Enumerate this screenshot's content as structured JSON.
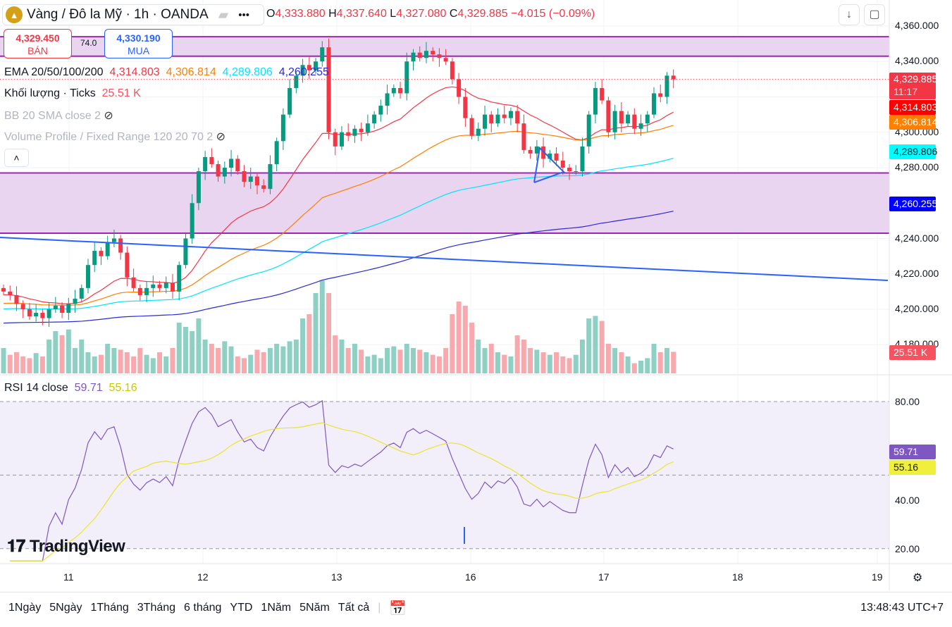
{
  "header": {
    "symbol": "Vàng / Đô la Mỹ · 1h · OANDA",
    "open_label": "O",
    "open": "4,333.880",
    "high_label": "H",
    "high": "4,337.640",
    "low_label": "L",
    "low": "4,327.080",
    "close_label": "C",
    "close": "4,329.885",
    "change": "−4.015 (−0.09%)"
  },
  "trade": {
    "sell_price": "4,329.450",
    "sell_label": "BÁN",
    "buy_price": "4,330.190",
    "buy_label": "MUA",
    "spread": "74.0"
  },
  "legend": {
    "ema_title": "EMA 20/50/100/200",
    "ema20": "4,314.803",
    "ema50": "4,306.814",
    "ema100": "4,289.806",
    "ema200": "4,260.255",
    "volume_title": "Khối lượng · Ticks",
    "volume": "25.51 K",
    "bb": "BB 20 SMA close 2",
    "vp": "Volume Profile / Fixed Range 120 20 70 2",
    "rsi_title": "RSI 14 close",
    "rsi": "59.71",
    "rsi_ma": "55.16"
  },
  "price_labels": {
    "last": "4,329.885",
    "countdown": "11:17",
    "ema20": "4,314.803",
    "ema50": "4,306.814",
    "ema100": "4,289.806",
    "ema200": "4,260.255",
    "volume": "25.51 K",
    "rsi": "59.71",
    "rsi_ma": "55.16"
  },
  "colors": {
    "up": "#089981",
    "down": "#f23645",
    "ema20": "#f23645",
    "ema50": "#ff7f00",
    "ema100": "#00e5ff",
    "ema200": "#2a2ad8",
    "rsi": "#7e57c2",
    "rsi_ma": "#e6e62e",
    "band": "#9c27b0"
  },
  "time_axis": [
    "11",
    "12",
    "13",
    "16",
    "17",
    "18",
    "19"
  ],
  "rsi_axis": [
    "80.00",
    "20.00",
    "40.00"
  ],
  "toolbar": {
    "ranges": [
      "1Ngày",
      "5Ngày",
      "1Tháng",
      "3Tháng",
      "6 tháng",
      "YTD",
      "1Năm",
      "5Năm",
      "Tất cả"
    ],
    "clock": "13:48:43 UTC+7"
  },
  "brand": "TradingView",
  "chart_data": {
    "type": "candlestick",
    "title": "Vàng / Đô la Mỹ · 1h · OANDA",
    "yaxis_ticks": [
      "4,360.000",
      "4,340.000",
      "4,300.000",
      "4,280.000",
      "4,240.000",
      "4,220.000",
      "4,200.000",
      "4,180.000"
    ],
    "ylim": [
      4174,
      4368
    ],
    "bands": [
      [
        4343,
        4354
      ],
      [
        4243,
        4277
      ]
    ],
    "trendline": [
      4240.6,
      4216.3
    ],
    "ema_seed": {
      "ema20": 4208,
      "ema50": 4203,
      "ema100": 4200,
      "ema200": 4192
    },
    "closes": [
      4210,
      4208,
      4203,
      4200,
      4196,
      4198,
      4195,
      4200,
      4202,
      4198,
      4203,
      4206,
      4212,
      4225,
      4233,
      4230,
      4238,
      4240,
      4232,
      4218,
      4212,
      4208,
      4212,
      4214,
      4212,
      4215,
      4210,
      4225,
      4240,
      4260,
      4278,
      4286,
      4282,
      4275,
      4280,
      4285,
      4278,
      4272,
      4275,
      4270,
      4268,
      4282,
      4295,
      4310,
      4325,
      4332,
      4338,
      4335,
      4340,
      4348,
      4300,
      4292,
      4300,
      4298,
      4302,
      4300,
      4305,
      4310,
      4315,
      4322,
      4325,
      4322,
      4340,
      4345,
      4342,
      4346,
      4344,
      4342,
      4340,
      4330,
      4320,
      4308,
      4298,
      4302,
      4310,
      4305,
      4310,
      4308,
      4312,
      4305,
      4290,
      4288,
      4292,
      4285,
      4288,
      4284,
      4280,
      4278,
      4278,
      4292,
      4310,
      4325,
      4318,
      4300,
      4312,
      4305,
      4310,
      4302,
      4305,
      4310,
      4322,
      4320,
      4332,
      4329.885
    ],
    "volumes_k": [
      30,
      22,
      25,
      20,
      18,
      24,
      20,
      40,
      50,
      45,
      52,
      30,
      40,
      25,
      20,
      22,
      35,
      30,
      28,
      25,
      20,
      30,
      22,
      18,
      25,
      20,
      30,
      60,
      55,
      50,
      65,
      40,
      35,
      30,
      38,
      32,
      20,
      18,
      22,
      28,
      25,
      30,
      35,
      32,
      38,
      40,
      65,
      70,
      95,
      110,
      95,
      45,
      40,
      30,
      35,
      28,
      20,
      22,
      18,
      30,
      32,
      28,
      35,
      30,
      28,
      25,
      22,
      20,
      30,
      70,
      85,
      80,
      60,
      40,
      30,
      35,
      25,
      22,
      20,
      45,
      40,
      30,
      28,
      25,
      22,
      25,
      20,
      18,
      22,
      40,
      65,
      68,
      62,
      35,
      30,
      25,
      20,
      12,
      15,
      18,
      35,
      25,
      30,
      25.51
    ]
  }
}
